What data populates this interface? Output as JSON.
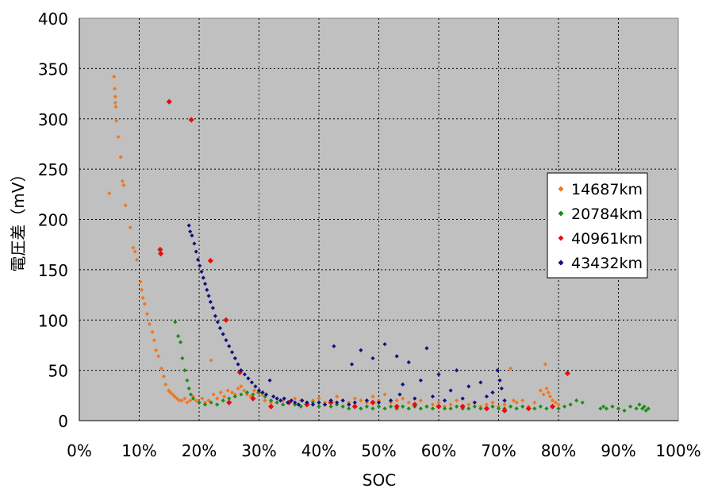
{
  "chart_data": {
    "type": "scatter",
    "title": "",
    "xlabel": "SOC",
    "ylabel": "電圧差（mV）",
    "xlim": [
      0,
      100
    ],
    "ylim": [
      0,
      400
    ],
    "x_ticks": [
      "0%",
      "10%",
      "20%",
      "30%",
      "40%",
      "50%",
      "60%",
      "70%",
      "80%",
      "90%",
      "100%"
    ],
    "y_ticks": [
      "0",
      "50",
      "100",
      "150",
      "200",
      "250",
      "300",
      "350",
      "400"
    ],
    "grid": true,
    "legend_position": "right",
    "background_color": "#c0c0c0",
    "series": [
      {
        "name": "14687km",
        "color": "#f07820",
        "points": [
          [
            5.0,
            226
          ],
          [
            5.8,
            342
          ],
          [
            5.9,
            330
          ],
          [
            6.0,
            322
          ],
          [
            6.0,
            316
          ],
          [
            6.1,
            312
          ],
          [
            6.2,
            298
          ],
          [
            6.5,
            282
          ],
          [
            6.9,
            262
          ],
          [
            7.2,
            238
          ],
          [
            7.4,
            234
          ],
          [
            7.7,
            214
          ],
          [
            8.5,
            192
          ],
          [
            9.0,
            172
          ],
          [
            9.3,
            168
          ],
          [
            9.6,
            160
          ],
          [
            10.2,
            138
          ],
          [
            10.4,
            130
          ],
          [
            10.6,
            122
          ],
          [
            10.9,
            116
          ],
          [
            11.3,
            106
          ],
          [
            11.7,
            96
          ],
          [
            12.2,
            88
          ],
          [
            12.5,
            80
          ],
          [
            12.8,
            70
          ],
          [
            13.2,
            64
          ],
          [
            13.7,
            52
          ],
          [
            14.1,
            44
          ],
          [
            14.4,
            36
          ],
          [
            14.9,
            30
          ],
          [
            15.2,
            28
          ],
          [
            15.6,
            26
          ],
          [
            15.9,
            24
          ],
          [
            16.3,
            22
          ],
          [
            16.7,
            20
          ],
          [
            17.1,
            20
          ],
          [
            17.6,
            22
          ],
          [
            18.0,
            18
          ],
          [
            18.5,
            20
          ],
          [
            19.0,
            24
          ],
          [
            19.5,
            20
          ],
          [
            20.0,
            18
          ],
          [
            20.5,
            22
          ],
          [
            21.0,
            18
          ],
          [
            21.6,
            20
          ],
          [
            22.0,
            60
          ],
          [
            22.4,
            26
          ],
          [
            23.0,
            22
          ],
          [
            23.6,
            28
          ],
          [
            24.2,
            24
          ],
          [
            24.8,
            30
          ],
          [
            25.5,
            28
          ],
          [
            26.0,
            26
          ],
          [
            26.5,
            32
          ],
          [
            27.0,
            34
          ],
          [
            27.5,
            30
          ],
          [
            28.0,
            26
          ],
          [
            28.6,
            24
          ],
          [
            29.2,
            30
          ],
          [
            29.8,
            28
          ],
          [
            30.5,
            26
          ],
          [
            31.0,
            20
          ],
          [
            32.0,
            18
          ],
          [
            33.0,
            22
          ],
          [
            34.0,
            20
          ],
          [
            35.0,
            18
          ],
          [
            36.0,
            22
          ],
          [
            37.0,
            20
          ],
          [
            38.0,
            18
          ],
          [
            39.0,
            20
          ],
          [
            40.0,
            22
          ],
          [
            41.0,
            18
          ],
          [
            42.0,
            20
          ],
          [
            43.0,
            24
          ],
          [
            44.0,
            20
          ],
          [
            45.0,
            18
          ],
          [
            46.0,
            22
          ],
          [
            47.0,
            20
          ],
          [
            48.0,
            18
          ],
          [
            49.0,
            24
          ],
          [
            50.0,
            20
          ],
          [
            51.0,
            26
          ],
          [
            52.0,
            18
          ],
          [
            53.0,
            20
          ],
          [
            54.0,
            22
          ],
          [
            55.0,
            18
          ],
          [
            56.0,
            16
          ],
          [
            57.0,
            20
          ],
          [
            58.0,
            14
          ],
          [
            59.0,
            16
          ],
          [
            60.0,
            18
          ],
          [
            61.0,
            14
          ],
          [
            62.0,
            16
          ],
          [
            63.0,
            20
          ],
          [
            64.0,
            14
          ],
          [
            65.0,
            16
          ],
          [
            66.0,
            18
          ],
          [
            67.0,
            14
          ],
          [
            68.0,
            16
          ],
          [
            69.0,
            18
          ],
          [
            70.0,
            14
          ],
          [
            71.0,
            16
          ],
          [
            72.0,
            52
          ],
          [
            72.5,
            20
          ],
          [
            73.0,
            18
          ],
          [
            74.0,
            20
          ],
          [
            75.0,
            14
          ],
          [
            76.0,
            18
          ],
          [
            77.0,
            30
          ],
          [
            77.5,
            26
          ],
          [
            77.8,
            56
          ],
          [
            78.0,
            32
          ],
          [
            78.3,
            28
          ],
          [
            78.6,
            24
          ],
          [
            79.0,
            20
          ],
          [
            79.5,
            18
          ],
          [
            80.0,
            16
          ]
        ]
      },
      {
        "name": "20784km",
        "color": "#1a8c1a",
        "points": [
          [
            16.0,
            98
          ],
          [
            16.5,
            84
          ],
          [
            16.9,
            78
          ],
          [
            17.2,
            62
          ],
          [
            17.6,
            50
          ],
          [
            18.0,
            40
          ],
          [
            18.3,
            32
          ],
          [
            18.6,
            26
          ],
          [
            19.0,
            22
          ],
          [
            20.0,
            18
          ],
          [
            21.0,
            16
          ],
          [
            22.0,
            18
          ],
          [
            23.0,
            16
          ],
          [
            24.0,
            20
          ],
          [
            25.0,
            22
          ],
          [
            26.0,
            24
          ],
          [
            27.0,
            26
          ],
          [
            28.0,
            28
          ],
          [
            29.0,
            26
          ],
          [
            30.0,
            28
          ],
          [
            31.0,
            24
          ],
          [
            32.0,
            20
          ],
          [
            33.0,
            18
          ],
          [
            34.0,
            16
          ],
          [
            35.0,
            18
          ],
          [
            36.0,
            16
          ],
          [
            37.0,
            14
          ],
          [
            38.0,
            16
          ],
          [
            39.0,
            18
          ],
          [
            40.0,
            14
          ],
          [
            41.0,
            16
          ],
          [
            42.0,
            14
          ],
          [
            43.0,
            16
          ],
          [
            44.0,
            14
          ],
          [
            45.0,
            12
          ],
          [
            46.0,
            14
          ],
          [
            47.0,
            12
          ],
          [
            48.0,
            14
          ],
          [
            49.0,
            12
          ],
          [
            50.0,
            14
          ],
          [
            51.0,
            12
          ],
          [
            52.0,
            14
          ],
          [
            53.0,
            12
          ],
          [
            54.0,
            14
          ],
          [
            55.0,
            12
          ],
          [
            56.0,
            14
          ],
          [
            57.0,
            12
          ],
          [
            58.0,
            14
          ],
          [
            59.0,
            12
          ],
          [
            60.0,
            14
          ],
          [
            61.0,
            12
          ],
          [
            62.0,
            12
          ],
          [
            63.0,
            14
          ],
          [
            64.0,
            12
          ],
          [
            65.0,
            12
          ],
          [
            66.0,
            14
          ],
          [
            67.0,
            12
          ],
          [
            68.0,
            12
          ],
          [
            69.0,
            14
          ],
          [
            70.0,
            12
          ],
          [
            71.0,
            12
          ],
          [
            72.0,
            14
          ],
          [
            73.0,
            12
          ],
          [
            74.0,
            14
          ],
          [
            75.0,
            12
          ],
          [
            76.0,
            12
          ],
          [
            77.0,
            14
          ],
          [
            78.0,
            12
          ],
          [
            79.0,
            14
          ],
          [
            80.0,
            12
          ],
          [
            81.0,
            14
          ],
          [
            82.0,
            16
          ],
          [
            83.0,
            20
          ],
          [
            84.0,
            18
          ],
          [
            87.0,
            12
          ],
          [
            87.5,
            14
          ],
          [
            88.0,
            12
          ],
          [
            89.0,
            14
          ],
          [
            90.0,
            12
          ],
          [
            91.0,
            10
          ],
          [
            92.0,
            14
          ],
          [
            93.0,
            12
          ],
          [
            93.5,
            16
          ],
          [
            94.0,
            12
          ],
          [
            94.3,
            14
          ],
          [
            94.6,
            10
          ],
          [
            95.0,
            12
          ]
        ]
      },
      {
        "name": "40961km",
        "color": "#e01010",
        "points": [
          [
            13.5,
            170
          ],
          [
            13.6,
            166
          ],
          [
            15.0,
            317
          ],
          [
            18.7,
            299
          ],
          [
            21.9,
            159
          ],
          [
            24.5,
            100
          ],
          [
            26.8,
            48
          ],
          [
            25.0,
            18
          ],
          [
            29.0,
            22
          ],
          [
            32.0,
            14
          ],
          [
            35.0,
            18
          ],
          [
            38.0,
            16
          ],
          [
            42.0,
            18
          ],
          [
            46.0,
            14
          ],
          [
            49.0,
            18
          ],
          [
            53.0,
            14
          ],
          [
            56.0,
            16
          ],
          [
            60.0,
            14
          ],
          [
            64.0,
            14
          ],
          [
            68.0,
            12
          ],
          [
            71.0,
            10
          ],
          [
            75.0,
            12
          ],
          [
            79.0,
            14
          ],
          [
            81.5,
            47
          ]
        ]
      },
      {
        "name": "43432km",
        "color": "#101080",
        "points": [
          [
            18.3,
            194
          ],
          [
            18.5,
            188
          ],
          [
            18.8,
            184
          ],
          [
            19.2,
            176
          ],
          [
            19.5,
            168
          ],
          [
            19.8,
            160
          ],
          [
            20.1,
            154
          ],
          [
            20.4,
            148
          ],
          [
            20.7,
            142
          ],
          [
            21.0,
            136
          ],
          [
            21.3,
            130
          ],
          [
            21.6,
            124
          ],
          [
            21.9,
            118
          ],
          [
            22.3,
            112
          ],
          [
            22.7,
            104
          ],
          [
            23.1,
            98
          ],
          [
            23.5,
            92
          ],
          [
            24.0,
            86
          ],
          [
            24.5,
            80
          ],
          [
            25.0,
            74
          ],
          [
            25.5,
            68
          ],
          [
            26.0,
            62
          ],
          [
            26.5,
            56
          ],
          [
            27.0,
            50
          ],
          [
            27.6,
            46
          ],
          [
            28.2,
            42
          ],
          [
            28.8,
            38
          ],
          [
            29.4,
            34
          ],
          [
            30.0,
            30
          ],
          [
            30.6,
            28
          ],
          [
            31.2,
            26
          ],
          [
            31.8,
            40
          ],
          [
            32.4,
            24
          ],
          [
            33.0,
            22
          ],
          [
            33.6,
            20
          ],
          [
            34.2,
            22
          ],
          [
            34.8,
            18
          ],
          [
            35.4,
            20
          ],
          [
            36.0,
            18
          ],
          [
            36.6,
            16
          ],
          [
            37.2,
            20
          ],
          [
            38.0,
            18
          ],
          [
            39.0,
            16
          ],
          [
            40.0,
            18
          ],
          [
            41.0,
            16
          ],
          [
            42.0,
            20
          ],
          [
            42.5,
            74
          ],
          [
            43.0,
            18
          ],
          [
            44.0,
            20
          ],
          [
            45.0,
            16
          ],
          [
            45.5,
            56
          ],
          [
            46.0,
            18
          ],
          [
            47.0,
            70
          ],
          [
            48.0,
            20
          ],
          [
            49.0,
            62
          ],
          [
            50.0,
            18
          ],
          [
            51.0,
            76
          ],
          [
            52.0,
            20
          ],
          [
            53.0,
            64
          ],
          [
            53.5,
            26
          ],
          [
            54.0,
            36
          ],
          [
            55.0,
            58
          ],
          [
            56.0,
            22
          ],
          [
            57.0,
            40
          ],
          [
            58.0,
            72
          ],
          [
            59.0,
            24
          ],
          [
            60.0,
            46
          ],
          [
            61.0,
            20
          ],
          [
            62.0,
            30
          ],
          [
            63.0,
            50
          ],
          [
            64.0,
            22
          ],
          [
            65.0,
            34
          ],
          [
            66.0,
            18
          ],
          [
            67.0,
            38
          ],
          [
            68.0,
            24
          ],
          [
            69.0,
            28
          ],
          [
            69.8,
            50
          ],
          [
            70.2,
            40
          ],
          [
            70.5,
            32
          ],
          [
            71.0,
            20
          ]
        ]
      }
    ]
  }
}
